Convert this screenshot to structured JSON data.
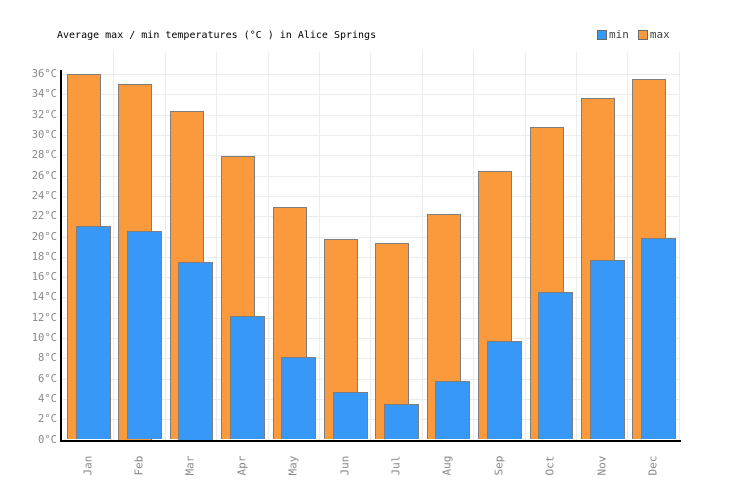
{
  "title": "Average max / min temperatures (°C ) in Alice Springs",
  "legend": [
    {
      "label": "min",
      "color": "#3898F8"
    },
    {
      "label": "max",
      "color": "#FB9A3C"
    }
  ],
  "chart_data": {
    "type": "bar",
    "title": "Average max / min temperatures (°C ) in Alice Springs",
    "categories": [
      "Jan",
      "Feb",
      "Mar",
      "Apr",
      "May",
      "Jun",
      "Jul",
      "Aug",
      "Sep",
      "Oct",
      "Nov",
      "Dec"
    ],
    "series": [
      {
        "name": "min",
        "color": "#3898F8",
        "values": [
          21.0,
          20.5,
          17.5,
          12.2,
          8.1,
          4.7,
          3.5,
          5.8,
          9.7,
          14.5,
          17.7,
          19.9
        ]
      },
      {
        "name": "max",
        "color": "#FB9A3C",
        "values": [
          36.0,
          35.0,
          32.4,
          27.9,
          22.9,
          19.8,
          19.4,
          22.2,
          26.5,
          30.8,
          33.6,
          35.5
        ]
      }
    ],
    "xlabel": "",
    "ylabel": "",
    "ylim": [
      0,
      36
    ],
    "y_tick_step": 2,
    "y_tick_suffix": "°C",
    "grid": true,
    "legend_position": "top-right",
    "bar_border_color": "#7E7E7E",
    "axis_color": "#000000",
    "grid_color": "#ECECEC",
    "tick_label_color": "#888888"
  }
}
